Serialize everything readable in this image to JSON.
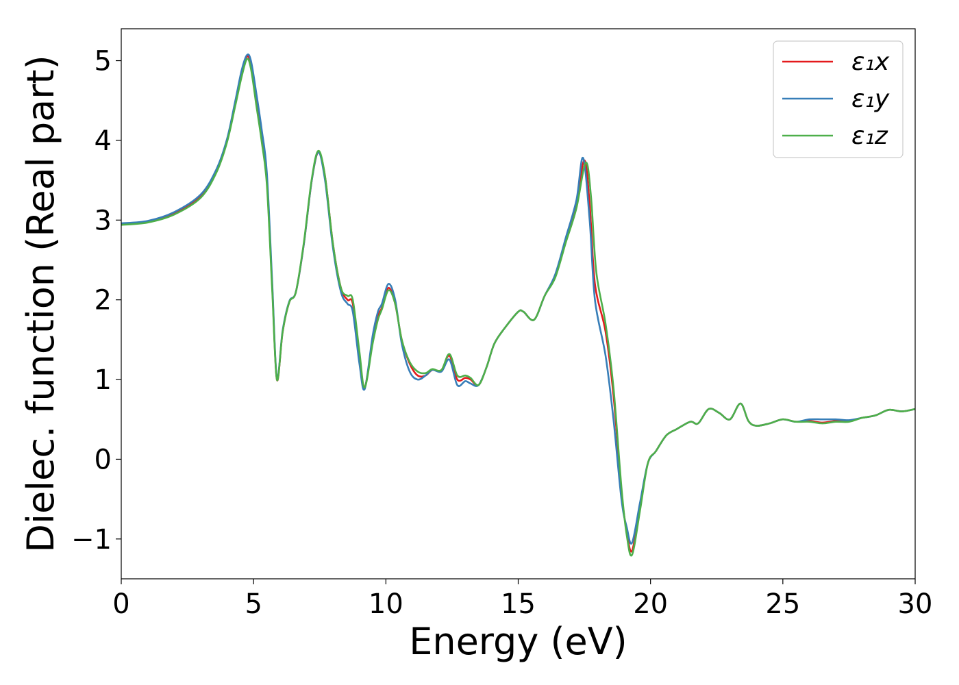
{
  "chart_data": {
    "type": "line",
    "title": "",
    "xlabel": "Energy (eV)",
    "ylabel": "Dielec. function (Real part)",
    "xlim": [
      0,
      30
    ],
    "ylim": [
      -1.5,
      5.4
    ],
    "xticks": [
      0,
      5,
      10,
      15,
      20,
      25,
      30
    ],
    "xtick_labels": [
      "0",
      "5",
      "10",
      "15",
      "20",
      "25",
      "30"
    ],
    "yticks": [
      -1,
      0,
      1,
      2,
      3,
      4,
      5
    ],
    "ytick_labels": [
      "−1",
      "0",
      "1",
      "2",
      "3",
      "4",
      "5"
    ],
    "grid": false,
    "legend_position": "top-right",
    "series": [
      {
        "name": "ε₁x",
        "color": "#e41a1c",
        "points": [
          [
            0,
            2.95
          ],
          [
            1,
            2.98
          ],
          [
            2,
            3.08
          ],
          [
            3,
            3.3
          ],
          [
            3.6,
            3.62
          ],
          [
            4.0,
            4.0
          ],
          [
            4.3,
            4.45
          ],
          [
            4.55,
            4.85
          ],
          [
            4.75,
            5.05
          ],
          [
            4.9,
            4.95
          ],
          [
            5.1,
            4.5
          ],
          [
            5.3,
            4.05
          ],
          [
            5.5,
            3.5
          ],
          [
            5.7,
            2.2
          ],
          [
            5.88,
            1.0
          ],
          [
            6.1,
            1.6
          ],
          [
            6.35,
            1.97
          ],
          [
            6.6,
            2.1
          ],
          [
            6.9,
            2.7
          ],
          [
            7.2,
            3.5
          ],
          [
            7.45,
            3.85
          ],
          [
            7.7,
            3.55
          ],
          [
            8.0,
            2.7
          ],
          [
            8.3,
            2.15
          ],
          [
            8.55,
            2.0
          ],
          [
            8.75,
            1.95
          ],
          [
            9.0,
            1.3
          ],
          [
            9.2,
            0.9
          ],
          [
            9.5,
            1.5
          ],
          [
            9.7,
            1.8
          ],
          [
            9.85,
            1.9
          ],
          [
            10.1,
            2.15
          ],
          [
            10.35,
            1.95
          ],
          [
            10.6,
            1.5
          ],
          [
            10.9,
            1.2
          ],
          [
            11.2,
            1.05
          ],
          [
            11.5,
            1.05
          ],
          [
            11.75,
            1.12
          ],
          [
            12.1,
            1.12
          ],
          [
            12.4,
            1.3
          ],
          [
            12.7,
            1.0
          ],
          [
            13.0,
            1.02
          ],
          [
            13.2,
            1.0
          ],
          [
            13.5,
            0.93
          ],
          [
            13.8,
            1.15
          ],
          [
            14.1,
            1.45
          ],
          [
            14.5,
            1.65
          ],
          [
            15.0,
            1.85
          ],
          [
            15.2,
            1.85
          ],
          [
            15.6,
            1.75
          ],
          [
            16.0,
            2.05
          ],
          [
            16.4,
            2.3
          ],
          [
            16.8,
            2.75
          ],
          [
            17.2,
            3.2
          ],
          [
            17.5,
            3.75
          ],
          [
            17.7,
            3.2
          ],
          [
            17.9,
            2.2
          ],
          [
            18.3,
            1.6
          ],
          [
            18.6,
            0.8
          ],
          [
            18.9,
            -0.4
          ],
          [
            19.1,
            -0.9
          ],
          [
            19.3,
            -1.15
          ],
          [
            19.6,
            -0.6
          ],
          [
            19.9,
            -0.05
          ],
          [
            20.2,
            0.1
          ],
          [
            20.6,
            0.3
          ],
          [
            21.0,
            0.38
          ],
          [
            21.5,
            0.47
          ],
          [
            21.8,
            0.45
          ],
          [
            22.2,
            0.63
          ],
          [
            22.6,
            0.58
          ],
          [
            23.0,
            0.5
          ],
          [
            23.4,
            0.7
          ],
          [
            23.7,
            0.48
          ],
          [
            24.0,
            0.42
          ],
          [
            24.5,
            0.45
          ],
          [
            25.0,
            0.5
          ],
          [
            25.5,
            0.47
          ],
          [
            26.0,
            0.48
          ],
          [
            26.5,
            0.46
          ],
          [
            27.0,
            0.48
          ],
          [
            27.5,
            0.48
          ],
          [
            28.0,
            0.52
          ],
          [
            28.5,
            0.55
          ],
          [
            29.0,
            0.62
          ],
          [
            29.5,
            0.6
          ],
          [
            30.0,
            0.63
          ]
        ]
      },
      {
        "name": "ε₁y",
        "color": "#377eb8",
        "points": [
          [
            0,
            2.96
          ],
          [
            1,
            2.99
          ],
          [
            2,
            3.1
          ],
          [
            3,
            3.32
          ],
          [
            3.6,
            3.64
          ],
          [
            4.0,
            4.02
          ],
          [
            4.3,
            4.48
          ],
          [
            4.55,
            4.88
          ],
          [
            4.75,
            5.07
          ],
          [
            4.9,
            5.0
          ],
          [
            5.1,
            4.6
          ],
          [
            5.3,
            4.15
          ],
          [
            5.5,
            3.6
          ],
          [
            5.7,
            2.25
          ],
          [
            5.88,
            1.02
          ],
          [
            6.1,
            1.62
          ],
          [
            6.35,
            1.98
          ],
          [
            6.6,
            2.1
          ],
          [
            6.9,
            2.7
          ],
          [
            7.2,
            3.5
          ],
          [
            7.45,
            3.85
          ],
          [
            7.7,
            3.5
          ],
          [
            8.0,
            2.65
          ],
          [
            8.3,
            2.1
          ],
          [
            8.55,
            1.95
          ],
          [
            8.75,
            1.85
          ],
          [
            9.0,
            1.2
          ],
          [
            9.2,
            0.88
          ],
          [
            9.5,
            1.55
          ],
          [
            9.7,
            1.85
          ],
          [
            9.85,
            1.95
          ],
          [
            10.1,
            2.2
          ],
          [
            10.35,
            2.0
          ],
          [
            10.6,
            1.45
          ],
          [
            10.9,
            1.1
          ],
          [
            11.2,
            1.0
          ],
          [
            11.5,
            1.05
          ],
          [
            11.75,
            1.12
          ],
          [
            12.1,
            1.1
          ],
          [
            12.4,
            1.25
          ],
          [
            12.7,
            0.93
          ],
          [
            13.0,
            0.98
          ],
          [
            13.2,
            0.95
          ],
          [
            13.5,
            0.93
          ],
          [
            13.8,
            1.15
          ],
          [
            14.1,
            1.45
          ],
          [
            14.5,
            1.65
          ],
          [
            15.0,
            1.85
          ],
          [
            15.2,
            1.85
          ],
          [
            15.6,
            1.75
          ],
          [
            16.0,
            2.05
          ],
          [
            16.4,
            2.32
          ],
          [
            16.8,
            2.78
          ],
          [
            17.2,
            3.25
          ],
          [
            17.45,
            3.78
          ],
          [
            17.7,
            3.0
          ],
          [
            17.9,
            2.0
          ],
          [
            18.3,
            1.3
          ],
          [
            18.6,
            0.5
          ],
          [
            18.9,
            -0.5
          ],
          [
            19.1,
            -0.85
          ],
          [
            19.3,
            -1.05
          ],
          [
            19.6,
            -0.55
          ],
          [
            19.9,
            -0.05
          ],
          [
            20.2,
            0.1
          ],
          [
            20.6,
            0.3
          ],
          [
            21.0,
            0.38
          ],
          [
            21.5,
            0.47
          ],
          [
            21.8,
            0.45
          ],
          [
            22.2,
            0.63
          ],
          [
            22.6,
            0.58
          ],
          [
            23.0,
            0.5
          ],
          [
            23.4,
            0.7
          ],
          [
            23.7,
            0.48
          ],
          [
            24.0,
            0.42
          ],
          [
            24.5,
            0.45
          ],
          [
            25.0,
            0.5
          ],
          [
            25.5,
            0.47
          ],
          [
            26.0,
            0.5
          ],
          [
            26.5,
            0.5
          ],
          [
            27.0,
            0.5
          ],
          [
            27.5,
            0.49
          ],
          [
            28.0,
            0.52
          ],
          [
            28.5,
            0.55
          ],
          [
            29.0,
            0.62
          ],
          [
            29.5,
            0.6
          ],
          [
            30.0,
            0.63
          ]
        ]
      },
      {
        "name": "ε₁z",
        "color": "#4daf4a",
        "points": [
          [
            0,
            2.94
          ],
          [
            1,
            2.97
          ],
          [
            2,
            3.07
          ],
          [
            3,
            3.28
          ],
          [
            3.6,
            3.6
          ],
          [
            4.0,
            3.98
          ],
          [
            4.3,
            4.42
          ],
          [
            4.55,
            4.8
          ],
          [
            4.75,
            5.02
          ],
          [
            4.9,
            4.9
          ],
          [
            5.1,
            4.45
          ],
          [
            5.3,
            4.0
          ],
          [
            5.5,
            3.45
          ],
          [
            5.7,
            2.15
          ],
          [
            5.88,
            1.0
          ],
          [
            6.1,
            1.6
          ],
          [
            6.35,
            1.97
          ],
          [
            6.6,
            2.1
          ],
          [
            6.9,
            2.72
          ],
          [
            7.2,
            3.52
          ],
          [
            7.45,
            3.87
          ],
          [
            7.7,
            3.55
          ],
          [
            8.0,
            2.7
          ],
          [
            8.3,
            2.15
          ],
          [
            8.55,
            2.05
          ],
          [
            8.75,
            2.0
          ],
          [
            9.0,
            1.35
          ],
          [
            9.2,
            0.9
          ],
          [
            9.5,
            1.45
          ],
          [
            9.7,
            1.75
          ],
          [
            9.85,
            1.88
          ],
          [
            10.1,
            2.12
          ],
          [
            10.35,
            1.95
          ],
          [
            10.6,
            1.5
          ],
          [
            10.9,
            1.22
          ],
          [
            11.2,
            1.1
          ],
          [
            11.5,
            1.08
          ],
          [
            11.75,
            1.13
          ],
          [
            12.1,
            1.12
          ],
          [
            12.4,
            1.32
          ],
          [
            12.7,
            1.05
          ],
          [
            13.0,
            1.05
          ],
          [
            13.2,
            1.02
          ],
          [
            13.5,
            0.93
          ],
          [
            13.8,
            1.15
          ],
          [
            14.1,
            1.45
          ],
          [
            14.5,
            1.65
          ],
          [
            15.0,
            1.85
          ],
          [
            15.2,
            1.85
          ],
          [
            15.6,
            1.75
          ],
          [
            16.0,
            2.05
          ],
          [
            16.4,
            2.28
          ],
          [
            16.8,
            2.72
          ],
          [
            17.2,
            3.15
          ],
          [
            17.55,
            3.72
          ],
          [
            17.75,
            3.3
          ],
          [
            17.95,
            2.35
          ],
          [
            18.3,
            1.7
          ],
          [
            18.6,
            0.9
          ],
          [
            18.9,
            -0.35
          ],
          [
            19.1,
            -0.95
          ],
          [
            19.3,
            -1.2
          ],
          [
            19.6,
            -0.65
          ],
          [
            19.9,
            -0.05
          ],
          [
            20.2,
            0.1
          ],
          [
            20.6,
            0.3
          ],
          [
            21.0,
            0.38
          ],
          [
            21.5,
            0.47
          ],
          [
            21.8,
            0.45
          ],
          [
            22.2,
            0.63
          ],
          [
            22.6,
            0.58
          ],
          [
            23.0,
            0.5
          ],
          [
            23.4,
            0.7
          ],
          [
            23.7,
            0.48
          ],
          [
            24.0,
            0.42
          ],
          [
            24.5,
            0.45
          ],
          [
            25.0,
            0.5
          ],
          [
            25.5,
            0.47
          ],
          [
            26.0,
            0.47
          ],
          [
            26.5,
            0.45
          ],
          [
            27.0,
            0.47
          ],
          [
            27.5,
            0.47
          ],
          [
            28.0,
            0.52
          ],
          [
            28.5,
            0.55
          ],
          [
            29.0,
            0.62
          ],
          [
            29.5,
            0.6
          ],
          [
            30.0,
            0.63
          ]
        ]
      }
    ]
  }
}
